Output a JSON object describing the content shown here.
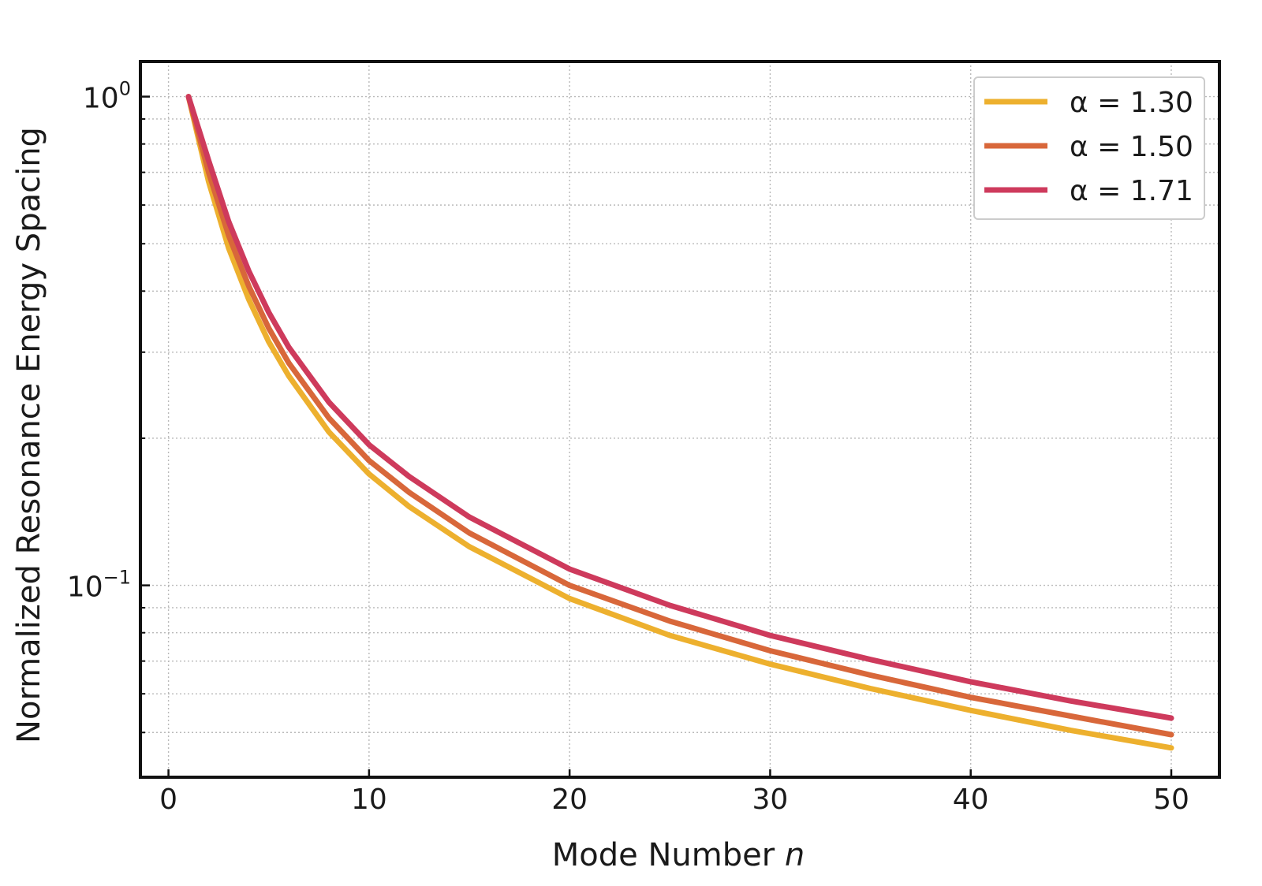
{
  "chart_data": {
    "type": "line",
    "title": "",
    "xlabel": "Mode Number",
    "xlabel_symbol": "n",
    "ylabel": "Normalized Resonance Energy Spacing",
    "xlim": [
      -1.4,
      52.4
    ],
    "ylim": [
      0.0405,
      1.18
    ],
    "yscale": "log",
    "grid": true,
    "legend_position": "top-right",
    "x_ticks": [
      0,
      10,
      20,
      30,
      40,
      50
    ],
    "x_tick_labels": [
      "0",
      "10",
      "20",
      "30",
      "40",
      "50"
    ],
    "y_ticks": [
      1,
      0.1
    ],
    "y_tick_labels": [
      {
        "base": "10",
        "exp": "0"
      },
      {
        "base": "10",
        "exp": "−1"
      }
    ],
    "y_minor_ticks": [
      0.05,
      0.06,
      0.07,
      0.08,
      0.09,
      0.2,
      0.3,
      0.4,
      0.5,
      0.6,
      0.7,
      0.8,
      0.9
    ],
    "x": [
      1,
      2,
      3,
      4,
      5,
      6,
      8,
      10,
      12,
      15,
      20,
      25,
      30,
      35,
      40,
      45,
      50
    ],
    "series": [
      {
        "name": "α = 1.30",
        "color": "#EDB02E",
        "values": [
          1.0,
          0.67,
          0.49,
          0.385,
          0.315,
          0.268,
          0.206,
          0.169,
          0.145,
          0.12,
          0.094,
          0.079,
          0.069,
          0.0615,
          0.0555,
          0.0505,
          0.0465
        ]
      },
      {
        "name": "α = 1.50",
        "color": "#D8673A",
        "values": [
          1.0,
          0.7,
          0.52,
          0.41,
          0.336,
          0.285,
          0.22,
          0.18,
          0.155,
          0.128,
          0.1,
          0.0845,
          0.0735,
          0.0655,
          0.059,
          0.054,
          0.0495
        ]
      },
      {
        "name": "α = 1.71",
        "color": "#CE3A5C",
        "values": [
          1.0,
          0.74,
          0.555,
          0.44,
          0.362,
          0.307,
          0.237,
          0.194,
          0.167,
          0.138,
          0.108,
          0.091,
          0.079,
          0.0705,
          0.0635,
          0.058,
          0.0535
        ]
      }
    ]
  }
}
